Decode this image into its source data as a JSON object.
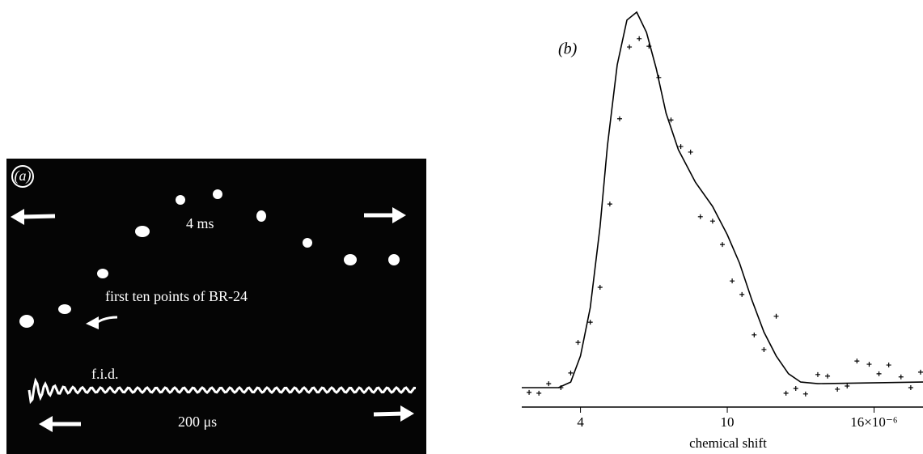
{
  "panel_a": {
    "label": "(a)",
    "period": "4 ms",
    "points_note": "first ten points of BR-24",
    "fid": "f.i.d.",
    "fid_span": "200 μs"
  },
  "chart_data": {
    "type": "line",
    "panel_label": "(b)",
    "x_label": "chemical shift",
    "xlim": [
      1.6,
      18.0
    ],
    "ylim": [
      0,
      100
    ],
    "xticks": [
      4,
      10,
      {
        "value": 16,
        "label": "16×10⁻⁶"
      }
    ],
    "series": [
      {
        "type": "line",
        "color": "#000",
        "x": [
          1.6,
          3.1,
          3.6,
          4.0,
          4.4,
          4.8,
          5.1,
          5.5,
          5.9,
          6.3,
          6.7,
          7.1,
          7.5,
          8.0,
          8.7,
          9.4,
          10.0,
          10.5,
          11.0,
          11.5,
          12.0,
          12.5,
          13.0,
          13.7,
          18.0
        ],
        "values": [
          4.9,
          4.9,
          6.3,
          12.9,
          25.1,
          45.5,
          65.9,
          86.3,
          97.6,
          99.6,
          94.5,
          85.3,
          74.1,
          64.9,
          56.7,
          50.6,
          43.5,
          36.3,
          27.1,
          18.9,
          12.9,
          8.4,
          6.3,
          5.9,
          6.3
        ]
      },
      {
        "type": "scatter",
        "color": "#000",
        "x": [
          1.9,
          2.3,
          2.7,
          3.2,
          3.6,
          3.9,
          4.4,
          4.8,
          5.2,
          5.6,
          6.0,
          6.4,
          6.8,
          7.2,
          7.7,
          8.1,
          8.5,
          8.9,
          9.4,
          9.8,
          10.2,
          10.6,
          11.1,
          11.5,
          12.0,
          12.4,
          12.8,
          13.2,
          13.7,
          14.1,
          14.5,
          14.9,
          15.3,
          15.8,
          16.2,
          16.6,
          17.1,
          17.5,
          17.9
        ],
        "values": [
          3.7,
          3.5,
          5.9,
          4.9,
          8.6,
          16.3,
          21.4,
          30.2,
          51.2,
          72.7,
          90.8,
          92.9,
          91.0,
          83.1,
          72.4,
          65.7,
          64.3,
          48.0,
          46.9,
          41.0,
          31.8,
          28.4,
          18.2,
          14.5,
          22.9,
          3.5,
          4.7,
          3.3,
          8.2,
          7.8,
          4.5,
          5.3,
          11.6,
          10.8,
          8.4,
          10.6,
          7.6,
          4.9,
          8.8
        ]
      }
    ]
  }
}
